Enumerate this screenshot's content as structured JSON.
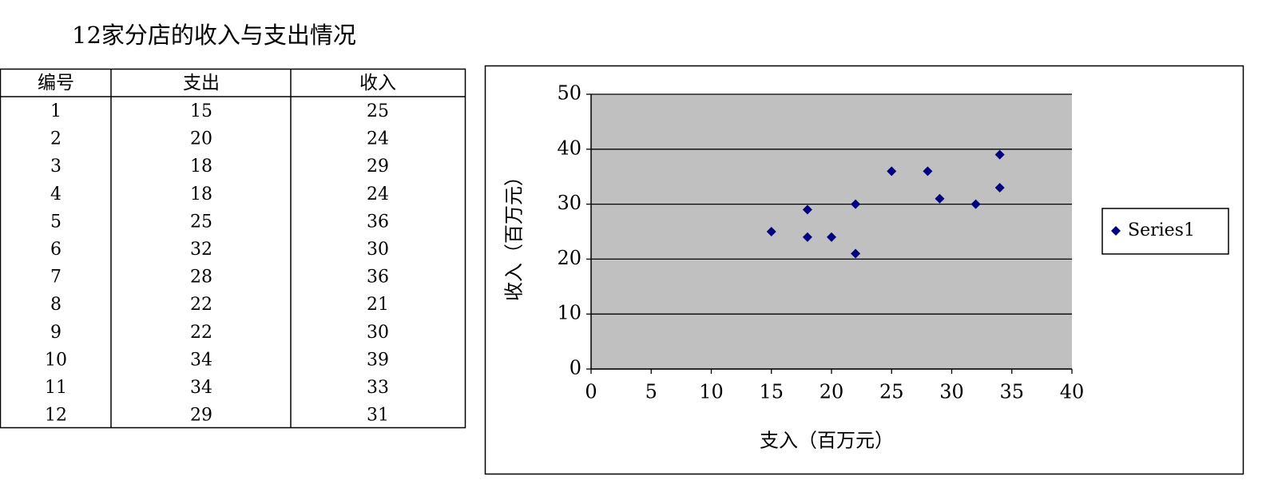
{
  "title": "12家分店的收入与支出情况",
  "table": {
    "header": [
      "编号",
      "支出",
      "收入"
    ],
    "rows": [
      [
        1,
        15,
        25
      ],
      [
        2,
        20,
        24
      ],
      [
        3,
        18,
        29
      ],
      [
        4,
        18,
        24
      ],
      [
        5,
        25,
        36
      ],
      [
        6,
        32,
        30
      ],
      [
        7,
        28,
        36
      ],
      [
        8,
        22,
        21
      ],
      [
        9,
        22,
        30
      ],
      [
        10,
        34,
        39
      ],
      [
        11,
        34,
        33
      ],
      [
        12,
        29,
        31
      ]
    ]
  },
  "chart_data": {
    "type": "scatter",
    "x_label": "支入（百万元）",
    "y_label": "收入（百万元）",
    "series": [
      {
        "name": "Series1",
        "color": "#000080",
        "x": [
          15,
          20,
          18,
          18,
          25,
          32,
          28,
          22,
          22,
          34,
          34,
          29
        ],
        "values": [
          25,
          24,
          29,
          24,
          36,
          30,
          36,
          21,
          30,
          39,
          33,
          31
        ]
      }
    ],
    "xlim": [
      0,
      40
    ],
    "xticks": [
      0,
      5,
      10,
      15,
      20,
      25,
      30,
      35,
      40
    ],
    "ylim": [
      0,
      50
    ],
    "yticks": [
      0,
      10,
      20,
      30,
      40,
      50
    ],
    "grid": true,
    "legend": "right",
    "plot_background": "#c0c0c0"
  }
}
